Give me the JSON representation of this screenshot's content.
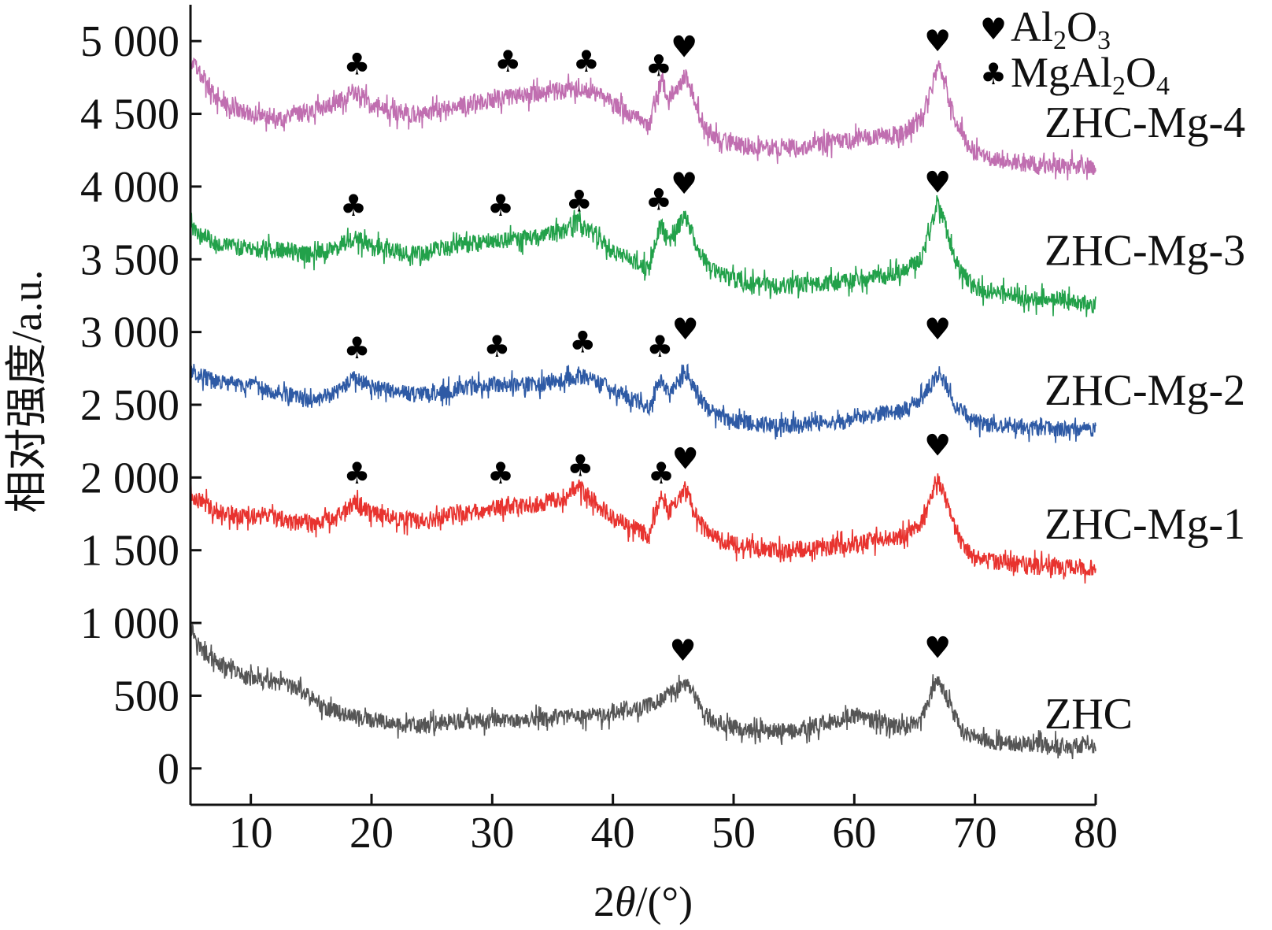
{
  "chart_data": {
    "type": "line",
    "xlabel_prefix": "2",
    "xlabel_theta": "θ",
    "xlabel_suffix": "/(°)",
    "ylabel": "相对强度/a.u.",
    "xlim": [
      5,
      80
    ],
    "ylim": [
      -250,
      5250
    ],
    "x_ticks": [
      10,
      20,
      30,
      40,
      50,
      60,
      70,
      80
    ],
    "y_ticks": [
      0,
      500,
      1000,
      1500,
      2000,
      2500,
      3000,
      3500,
      4000,
      4500,
      5000
    ],
    "y_tick_labels": [
      "0",
      "500",
      "1 000",
      "1 500",
      "2 000",
      "2 500",
      "3 000",
      "3 500",
      "4 000",
      "4 500",
      "5 000"
    ],
    "series": [
      {
        "name": "ZHC",
        "color": "#555555",
        "points": [
          [
            5,
            980
          ],
          [
            6,
            800
          ],
          [
            8,
            680
          ],
          [
            10,
            620
          ],
          [
            12,
            580
          ],
          [
            14,
            550
          ],
          [
            16,
            420
          ],
          [
            18,
            370
          ],
          [
            20,
            330
          ],
          [
            22,
            300
          ],
          [
            24,
            290
          ],
          [
            26,
            320
          ],
          [
            28,
            320
          ],
          [
            30,
            330
          ],
          [
            32,
            330
          ],
          [
            34,
            340
          ],
          [
            36,
            350
          ],
          [
            38,
            360
          ],
          [
            40,
            370
          ],
          [
            41,
            420
          ],
          [
            42,
            400
          ],
          [
            43,
            440
          ],
          [
            44,
            470
          ],
          [
            45,
            540
          ],
          [
            45.8,
            590
          ],
          [
            46.5,
            540
          ],
          [
            47.5,
            380
          ],
          [
            48.5,
            310
          ],
          [
            50,
            280
          ],
          [
            52,
            250
          ],
          [
            54,
            260
          ],
          [
            56,
            270
          ],
          [
            58,
            320
          ],
          [
            60,
            360
          ],
          [
            62,
            320
          ],
          [
            64,
            280
          ],
          [
            65.5,
            330
          ],
          [
            66.3,
            500
          ],
          [
            66.8,
            610
          ],
          [
            67.3,
            560
          ],
          [
            68,
            420
          ],
          [
            69,
            250
          ],
          [
            71,
            190
          ],
          [
            73,
            170
          ],
          [
            76,
            160
          ],
          [
            80,
            150
          ]
        ],
        "noise": 55
      },
      {
        "name": "ZHC-Mg-1",
        "color": "#e8332f",
        "points": [
          [
            5,
            1880
          ],
          [
            7,
            1780
          ],
          [
            9,
            1730
          ],
          [
            11,
            1740
          ],
          [
            13,
            1700
          ],
          [
            15,
            1690
          ],
          [
            17,
            1730
          ],
          [
            18.6,
            1820
          ],
          [
            20,
            1760
          ],
          [
            22,
            1720
          ],
          [
            24,
            1700
          ],
          [
            26,
            1730
          ],
          [
            28,
            1760
          ],
          [
            30,
            1790
          ],
          [
            32,
            1800
          ],
          [
            34,
            1820
          ],
          [
            36,
            1870
          ],
          [
            37,
            1940
          ],
          [
            38,
            1870
          ],
          [
            40,
            1720
          ],
          [
            42,
            1640
          ],
          [
            43,
            1600
          ],
          [
            43.6,
            1780
          ],
          [
            44,
            1880
          ],
          [
            44.6,
            1760
          ],
          [
            45.5,
            1860
          ],
          [
            46,
            1930
          ],
          [
            47,
            1720
          ],
          [
            48,
            1600
          ],
          [
            50,
            1540
          ],
          [
            52,
            1510
          ],
          [
            54,
            1500
          ],
          [
            56,
            1510
          ],
          [
            58,
            1520
          ],
          [
            60,
            1540
          ],
          [
            62,
            1570
          ],
          [
            64,
            1600
          ],
          [
            65.5,
            1680
          ],
          [
            66.4,
            1850
          ],
          [
            67,
            2000
          ],
          [
            67.5,
            1870
          ],
          [
            68.5,
            1600
          ],
          [
            70,
            1440
          ],
          [
            72,
            1420
          ],
          [
            75,
            1390
          ],
          [
            80,
            1380
          ]
        ],
        "noise": 60
      },
      {
        "name": "ZHC-Mg-2",
        "color": "#2e5aa5",
        "points": [
          [
            5,
            2740
          ],
          [
            7,
            2660
          ],
          [
            9,
            2640
          ],
          [
            11,
            2610
          ],
          [
            13,
            2570
          ],
          [
            15,
            2520
          ],
          [
            17,
            2580
          ],
          [
            18.6,
            2680
          ],
          [
            20,
            2620
          ],
          [
            22,
            2590
          ],
          [
            24,
            2570
          ],
          [
            26,
            2590
          ],
          [
            28,
            2620
          ],
          [
            30,
            2640
          ],
          [
            32,
            2650
          ],
          [
            34,
            2640
          ],
          [
            36,
            2670
          ],
          [
            37.5,
            2700
          ],
          [
            39,
            2650
          ],
          [
            41,
            2560
          ],
          [
            43,
            2480
          ],
          [
            43.6,
            2620
          ],
          [
            44,
            2680
          ],
          [
            44.6,
            2580
          ],
          [
            45.5,
            2660
          ],
          [
            46,
            2710
          ],
          [
            47,
            2580
          ],
          [
            48,
            2460
          ],
          [
            50,
            2390
          ],
          [
            52,
            2370
          ],
          [
            54,
            2360
          ],
          [
            56,
            2370
          ],
          [
            58,
            2380
          ],
          [
            60,
            2400
          ],
          [
            62,
            2430
          ],
          [
            64,
            2460
          ],
          [
            65.5,
            2530
          ],
          [
            66.4,
            2650
          ],
          [
            67,
            2720
          ],
          [
            67.5,
            2660
          ],
          [
            68.5,
            2480
          ],
          [
            70,
            2380
          ],
          [
            72,
            2360
          ],
          [
            75,
            2340
          ],
          [
            80,
            2330
          ]
        ],
        "noise": 55
      },
      {
        "name": "ZHC-Mg-3",
        "color": "#22a14a",
        "points": [
          [
            5,
            3720
          ],
          [
            7,
            3620
          ],
          [
            9,
            3580
          ],
          [
            11,
            3570
          ],
          [
            13,
            3560
          ],
          [
            15,
            3530
          ],
          [
            17,
            3570
          ],
          [
            18.6,
            3650
          ],
          [
            20,
            3590
          ],
          [
            22,
            3550
          ],
          [
            24,
            3540
          ],
          [
            26,
            3570
          ],
          [
            28,
            3600
          ],
          [
            30,
            3630
          ],
          [
            32,
            3640
          ],
          [
            34,
            3650
          ],
          [
            36,
            3700
          ],
          [
            37,
            3760
          ],
          [
            38,
            3700
          ],
          [
            40,
            3560
          ],
          [
            42,
            3470
          ],
          [
            43,
            3430
          ],
          [
            43.6,
            3640
          ],
          [
            44,
            3740
          ],
          [
            44.6,
            3620
          ],
          [
            45.5,
            3740
          ],
          [
            46,
            3800
          ],
          [
            47,
            3580
          ],
          [
            48,
            3440
          ],
          [
            50,
            3360
          ],
          [
            52,
            3330
          ],
          [
            54,
            3320
          ],
          [
            56,
            3320
          ],
          [
            58,
            3340
          ],
          [
            60,
            3360
          ],
          [
            62,
            3380
          ],
          [
            64,
            3410
          ],
          [
            65.5,
            3500
          ],
          [
            66.4,
            3720
          ],
          [
            67,
            3880
          ],
          [
            67.5,
            3740
          ],
          [
            68.5,
            3450
          ],
          [
            70,
            3300
          ],
          [
            72,
            3270
          ],
          [
            75,
            3230
          ],
          [
            80,
            3190
          ]
        ],
        "noise": 60
      },
      {
        "name": "ZHC-Mg-4",
        "color": "#c06eb0",
        "points": [
          [
            5,
            4880
          ],
          [
            7,
            4620
          ],
          [
            9,
            4520
          ],
          [
            11,
            4490
          ],
          [
            13,
            4470
          ],
          [
            15,
            4520
          ],
          [
            17,
            4570
          ],
          [
            18.6,
            4660
          ],
          [
            20,
            4560
          ],
          [
            22,
            4500
          ],
          [
            24,
            4490
          ],
          [
            26,
            4530
          ],
          [
            28,
            4570
          ],
          [
            30,
            4600
          ],
          [
            32,
            4620
          ],
          [
            34,
            4640
          ],
          [
            36,
            4660
          ],
          [
            37.5,
            4680
          ],
          [
            39,
            4620
          ],
          [
            41,
            4520
          ],
          [
            43,
            4420
          ],
          [
            43.6,
            4620
          ],
          [
            44,
            4720
          ],
          [
            44.6,
            4620
          ],
          [
            45.5,
            4700
          ],
          [
            46,
            4760
          ],
          [
            47,
            4520
          ],
          [
            48,
            4360
          ],
          [
            50,
            4290
          ],
          [
            52,
            4270
          ],
          [
            54,
            4270
          ],
          [
            56,
            4280
          ],
          [
            58,
            4300
          ],
          [
            60,
            4320
          ],
          [
            62,
            4340
          ],
          [
            64,
            4360
          ],
          [
            65.5,
            4450
          ],
          [
            66.4,
            4680
          ],
          [
            67,
            4840
          ],
          [
            67.5,
            4700
          ],
          [
            68.5,
            4420
          ],
          [
            70,
            4230
          ],
          [
            72,
            4180
          ],
          [
            75,
            4150
          ],
          [
            80,
            4140
          ]
        ],
        "noise": 60
      }
    ],
    "peak_markers": {
      "MgAl2O4_symbol": "♣",
      "Al2O3_symbol": "♥",
      "groups": [
        {
          "series": "ZHC",
          "marks": [
            {
              "x": 45.8,
              "y": 740,
              "symbol": "♥"
            },
            {
              "x": 66.9,
              "y": 760,
              "symbol": "♥"
            }
          ]
        },
        {
          "series": "ZHC-Mg-1",
          "marks": [
            {
              "x": 18.8,
              "y": 1960,
              "symbol": "♣"
            },
            {
              "x": 30.7,
              "y": 1960,
              "symbol": "♣"
            },
            {
              "x": 37.3,
              "y": 2010,
              "symbol": "♣"
            },
            {
              "x": 44.0,
              "y": 1960,
              "symbol": "♣"
            },
            {
              "x": 46.0,
              "y": 2060,
              "symbol": "♥"
            },
            {
              "x": 66.9,
              "y": 2150,
              "symbol": "♥"
            }
          ]
        },
        {
          "series": "ZHC-Mg-2",
          "marks": [
            {
              "x": 18.8,
              "y": 2820,
              "symbol": "♣"
            },
            {
              "x": 30.4,
              "y": 2830,
              "symbol": "♣"
            },
            {
              "x": 37.5,
              "y": 2860,
              "symbol": "♣"
            },
            {
              "x": 43.9,
              "y": 2830,
              "symbol": "♣"
            },
            {
              "x": 46.0,
              "y": 2950,
              "symbol": "♥"
            },
            {
              "x": 66.9,
              "y": 2950,
              "symbol": "♥"
            }
          ]
        },
        {
          "series": "ZHC-Mg-3",
          "marks": [
            {
              "x": 18.5,
              "y": 3800,
              "symbol": "♣"
            },
            {
              "x": 30.7,
              "y": 3800,
              "symbol": "♣"
            },
            {
              "x": 37.2,
              "y": 3830,
              "symbol": "♣"
            },
            {
              "x": 43.8,
              "y": 3840,
              "symbol": "♣"
            },
            {
              "x": 45.9,
              "y": 3950,
              "symbol": "♥"
            },
            {
              "x": 66.9,
              "y": 3960,
              "symbol": "♥"
            }
          ]
        },
        {
          "series": "ZHC-Mg-4",
          "marks": [
            {
              "x": 18.8,
              "y": 4770,
              "symbol": "♣"
            },
            {
              "x": 31.3,
              "y": 4790,
              "symbol": "♣"
            },
            {
              "x": 37.8,
              "y": 4790,
              "symbol": "♣"
            },
            {
              "x": 43.8,
              "y": 4760,
              "symbol": "♣"
            },
            {
              "x": 45.9,
              "y": 4890,
              "symbol": "♥"
            },
            {
              "x": 66.9,
              "y": 4930,
              "symbol": "♥"
            }
          ]
        }
      ]
    },
    "legend": {
      "position": "top-right",
      "items": [
        {
          "symbol": "♥",
          "base": "Al",
          "sub1": "2",
          "mid": "O",
          "sub2": "3"
        },
        {
          "symbol": "♣",
          "base": "MgAl",
          "sub1": "2",
          "mid": "O",
          "sub2": "4"
        }
      ]
    },
    "grid": false
  }
}
